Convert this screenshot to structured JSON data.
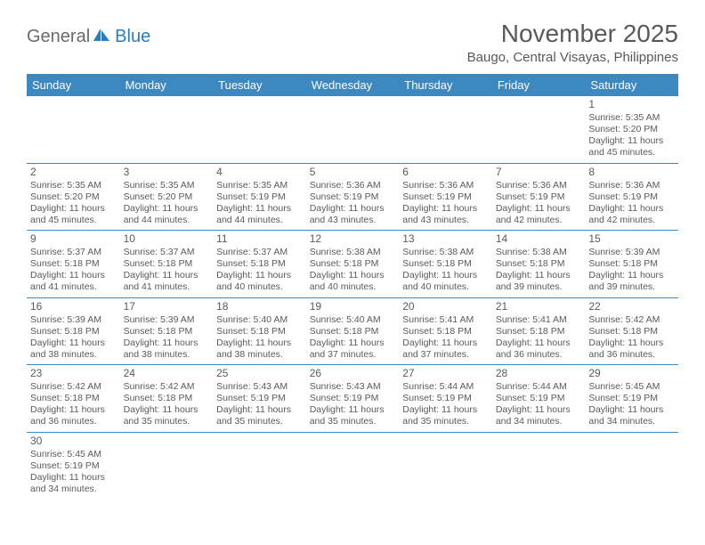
{
  "brand": {
    "part1": "General",
    "part2": "Blue"
  },
  "title": "November 2025",
  "location": "Baugo, Central Visayas, Philippines",
  "colors": {
    "header_bg": "#3D88BE",
    "header_text": "#ffffff",
    "body_text": "#5a5a5a",
    "title_text": "#595959",
    "row_border": "#3D88BE",
    "brand_gray": "#6a6a6a",
    "brand_blue": "#2a7db9",
    "page_bg": "#ffffff"
  },
  "weekdays": [
    "Sunday",
    "Monday",
    "Tuesday",
    "Wednesday",
    "Thursday",
    "Friday",
    "Saturday"
  ],
  "weeks": [
    [
      null,
      null,
      null,
      null,
      null,
      null,
      {
        "n": "1",
        "sr": "5:35 AM",
        "ss": "5:20 PM",
        "dl": "11 hours and 45 minutes."
      }
    ],
    [
      {
        "n": "2",
        "sr": "5:35 AM",
        "ss": "5:20 PM",
        "dl": "11 hours and 45 minutes."
      },
      {
        "n": "3",
        "sr": "5:35 AM",
        "ss": "5:20 PM",
        "dl": "11 hours and 44 minutes."
      },
      {
        "n": "4",
        "sr": "5:35 AM",
        "ss": "5:19 PM",
        "dl": "11 hours and 44 minutes."
      },
      {
        "n": "5",
        "sr": "5:36 AM",
        "ss": "5:19 PM",
        "dl": "11 hours and 43 minutes."
      },
      {
        "n": "6",
        "sr": "5:36 AM",
        "ss": "5:19 PM",
        "dl": "11 hours and 43 minutes."
      },
      {
        "n": "7",
        "sr": "5:36 AM",
        "ss": "5:19 PM",
        "dl": "11 hours and 42 minutes."
      },
      {
        "n": "8",
        "sr": "5:36 AM",
        "ss": "5:19 PM",
        "dl": "11 hours and 42 minutes."
      }
    ],
    [
      {
        "n": "9",
        "sr": "5:37 AM",
        "ss": "5:18 PM",
        "dl": "11 hours and 41 minutes."
      },
      {
        "n": "10",
        "sr": "5:37 AM",
        "ss": "5:18 PM",
        "dl": "11 hours and 41 minutes."
      },
      {
        "n": "11",
        "sr": "5:37 AM",
        "ss": "5:18 PM",
        "dl": "11 hours and 40 minutes."
      },
      {
        "n": "12",
        "sr": "5:38 AM",
        "ss": "5:18 PM",
        "dl": "11 hours and 40 minutes."
      },
      {
        "n": "13",
        "sr": "5:38 AM",
        "ss": "5:18 PM",
        "dl": "11 hours and 40 minutes."
      },
      {
        "n": "14",
        "sr": "5:38 AM",
        "ss": "5:18 PM",
        "dl": "11 hours and 39 minutes."
      },
      {
        "n": "15",
        "sr": "5:39 AM",
        "ss": "5:18 PM",
        "dl": "11 hours and 39 minutes."
      }
    ],
    [
      {
        "n": "16",
        "sr": "5:39 AM",
        "ss": "5:18 PM",
        "dl": "11 hours and 38 minutes."
      },
      {
        "n": "17",
        "sr": "5:39 AM",
        "ss": "5:18 PM",
        "dl": "11 hours and 38 minutes."
      },
      {
        "n": "18",
        "sr": "5:40 AM",
        "ss": "5:18 PM",
        "dl": "11 hours and 38 minutes."
      },
      {
        "n": "19",
        "sr": "5:40 AM",
        "ss": "5:18 PM",
        "dl": "11 hours and 37 minutes."
      },
      {
        "n": "20",
        "sr": "5:41 AM",
        "ss": "5:18 PM",
        "dl": "11 hours and 37 minutes."
      },
      {
        "n": "21",
        "sr": "5:41 AM",
        "ss": "5:18 PM",
        "dl": "11 hours and 36 minutes."
      },
      {
        "n": "22",
        "sr": "5:42 AM",
        "ss": "5:18 PM",
        "dl": "11 hours and 36 minutes."
      }
    ],
    [
      {
        "n": "23",
        "sr": "5:42 AM",
        "ss": "5:18 PM",
        "dl": "11 hours and 36 minutes."
      },
      {
        "n": "24",
        "sr": "5:42 AM",
        "ss": "5:18 PM",
        "dl": "11 hours and 35 minutes."
      },
      {
        "n": "25",
        "sr": "5:43 AM",
        "ss": "5:19 PM",
        "dl": "11 hours and 35 minutes."
      },
      {
        "n": "26",
        "sr": "5:43 AM",
        "ss": "5:19 PM",
        "dl": "11 hours and 35 minutes."
      },
      {
        "n": "27",
        "sr": "5:44 AM",
        "ss": "5:19 PM",
        "dl": "11 hours and 35 minutes."
      },
      {
        "n": "28",
        "sr": "5:44 AM",
        "ss": "5:19 PM",
        "dl": "11 hours and 34 minutes."
      },
      {
        "n": "29",
        "sr": "5:45 AM",
        "ss": "5:19 PM",
        "dl": "11 hours and 34 minutes."
      }
    ],
    [
      {
        "n": "30",
        "sr": "5:45 AM",
        "ss": "5:19 PM",
        "dl": "11 hours and 34 minutes."
      },
      null,
      null,
      null,
      null,
      null,
      null
    ]
  ],
  "labels": {
    "sunrise": "Sunrise:",
    "sunset": "Sunset:",
    "daylight": "Daylight:"
  }
}
